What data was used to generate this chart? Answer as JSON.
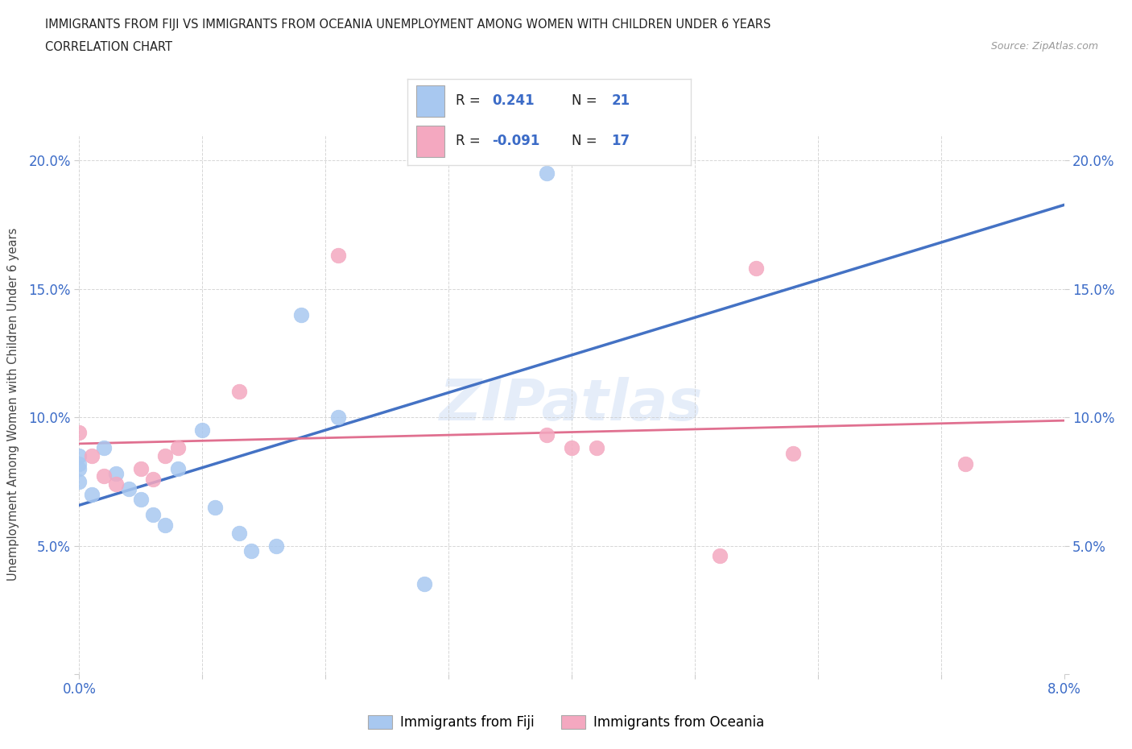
{
  "title_line1": "IMMIGRANTS FROM FIJI VS IMMIGRANTS FROM OCEANIA UNEMPLOYMENT AMONG WOMEN WITH CHILDREN UNDER 6 YEARS",
  "title_line2": "CORRELATION CHART",
  "source": "Source: ZipAtlas.com",
  "ylabel": "Unemployment Among Women with Children Under 6 years",
  "xlim": [
    0.0,
    0.08
  ],
  "ylim": [
    0.0,
    0.21
  ],
  "xticks": [
    0.0,
    0.01,
    0.02,
    0.03,
    0.04,
    0.05,
    0.06,
    0.07,
    0.08
  ],
  "yticks": [
    0.0,
    0.05,
    0.1,
    0.15,
    0.2
  ],
  "fiji_color": "#a8c8f0",
  "fiji_line_color": "#4472c4",
  "oceania_color": "#f4a8c0",
  "oceania_line_color": "#e07090",
  "fiji_R": 0.241,
  "fiji_N": 21,
  "oceania_R": -0.091,
  "oceania_N": 17,
  "watermark": "ZIPatlas",
  "fiji_x": [
    0.0,
    0.0,
    0.0,
    0.0,
    0.001,
    0.002,
    0.003,
    0.004,
    0.005,
    0.006,
    0.007,
    0.008,
    0.01,
    0.011,
    0.013,
    0.014,
    0.016,
    0.018,
    0.021,
    0.028,
    0.038
  ],
  "fiji_y": [
    0.075,
    0.08,
    0.082,
    0.085,
    0.07,
    0.088,
    0.078,
    0.072,
    0.068,
    0.062,
    0.058,
    0.08,
    0.095,
    0.065,
    0.055,
    0.048,
    0.05,
    0.14,
    0.1,
    0.035,
    0.195
  ],
  "oceania_x": [
    0.0,
    0.001,
    0.002,
    0.003,
    0.005,
    0.006,
    0.007,
    0.008,
    0.013,
    0.021,
    0.038,
    0.04,
    0.042,
    0.052,
    0.055,
    0.058,
    0.072
  ],
  "oceania_y": [
    0.094,
    0.085,
    0.077,
    0.074,
    0.08,
    0.076,
    0.085,
    0.088,
    0.11,
    0.163,
    0.093,
    0.088,
    0.088,
    0.046,
    0.158,
    0.086,
    0.082
  ]
}
